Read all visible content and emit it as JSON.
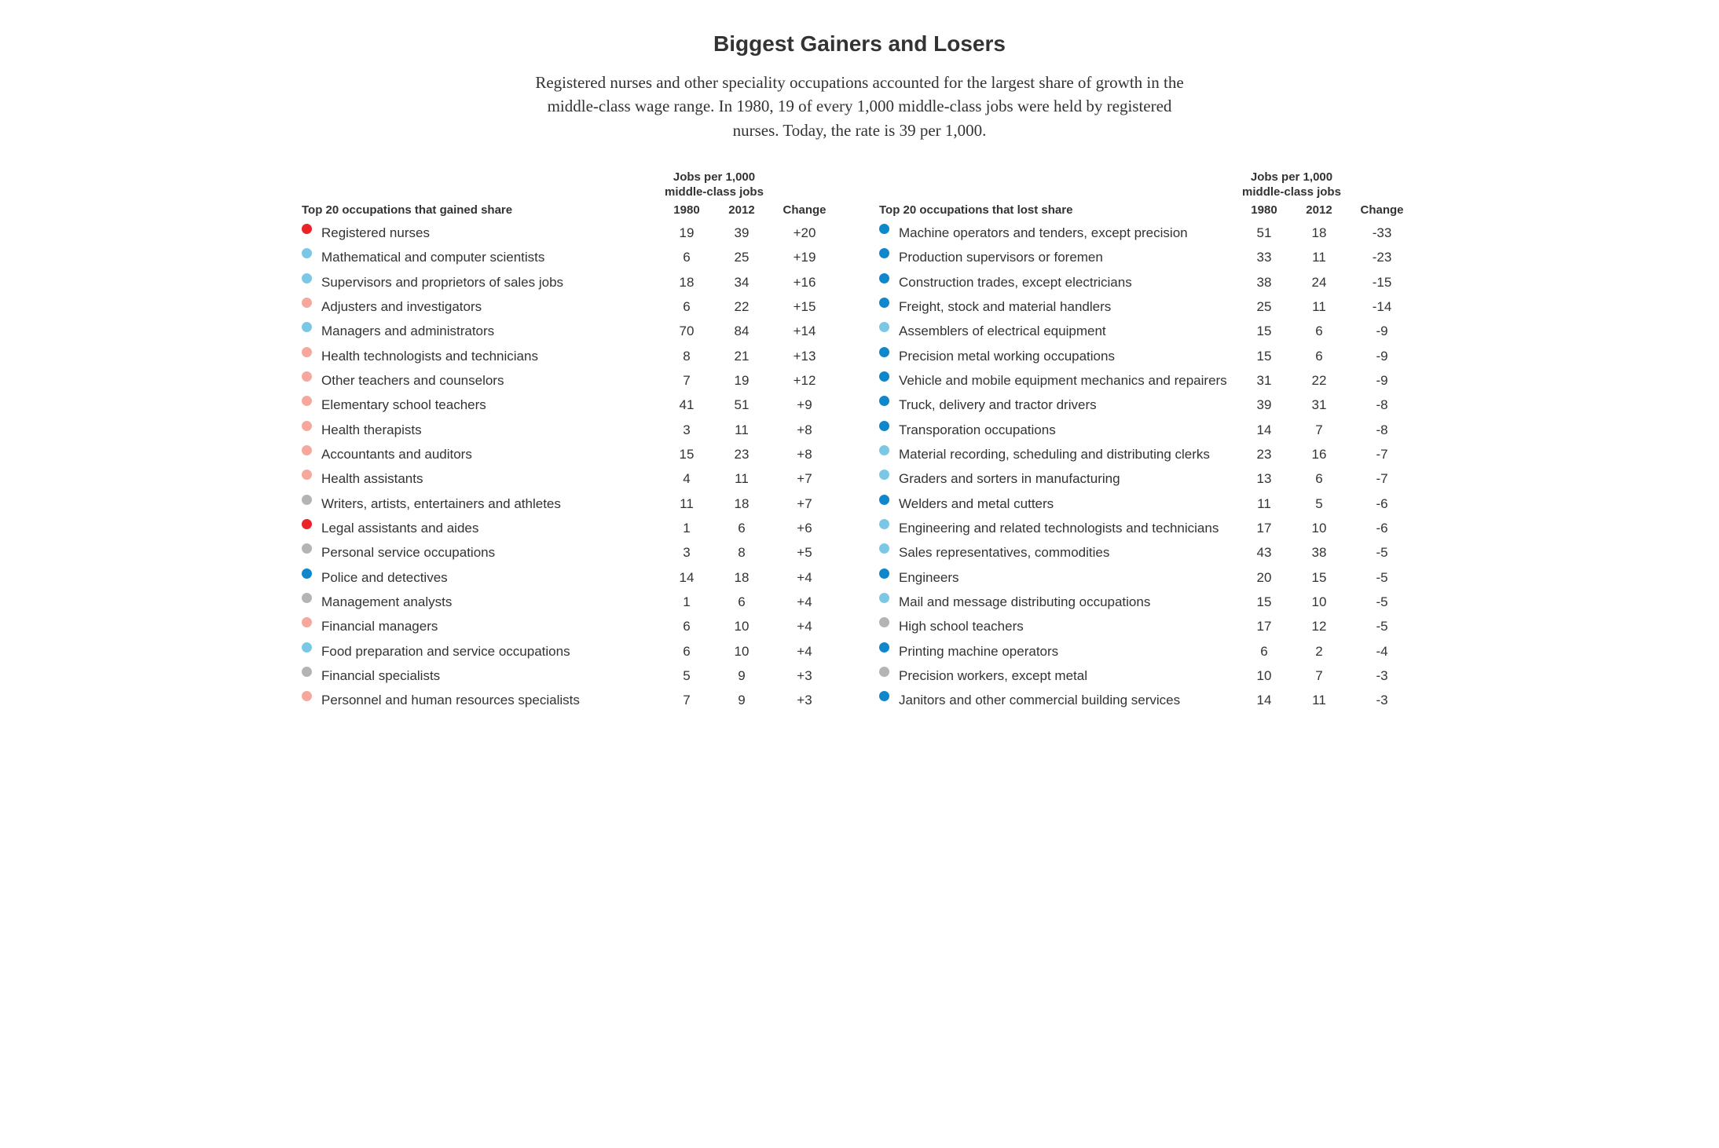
{
  "title": "Biggest Gainers and Losers",
  "subtitle": "Registered nurses and other speciality occupations accounted for the largest share of growth in the middle-class wage range. In 1980, 19 of every 1,000 middle-class jobs were held by registered nurses. Today, the rate is 39 per 1,000.",
  "colors": {
    "red": "#eb2227",
    "lightblue": "#7bc8e4",
    "pink": "#f5a89b",
    "grey": "#b4b4b4",
    "blue": "#0f87cc"
  },
  "headers": {
    "super": "Jobs per 1,000 middle-class jobs",
    "y1980": "1980",
    "y2012": "2012",
    "change": "Change"
  },
  "gainers": {
    "caption": "Top 20 occupations that gained share",
    "rows": [
      {
        "color": "red",
        "label": "Registered nurses",
        "y1980": "19",
        "y2012": "39",
        "change": "+20"
      },
      {
        "color": "lightblue",
        "label": "Mathematical and computer scientists",
        "y1980": "6",
        "y2012": "25",
        "change": "+19"
      },
      {
        "color": "lightblue",
        "label": "Supervisors and proprietors of sales jobs",
        "y1980": "18",
        "y2012": "34",
        "change": "+16"
      },
      {
        "color": "pink",
        "label": "Adjusters and investigators",
        "y1980": "6",
        "y2012": "22",
        "change": "+15"
      },
      {
        "color": "lightblue",
        "label": "Managers and administrators",
        "y1980": "70",
        "y2012": "84",
        "change": "+14"
      },
      {
        "color": "pink",
        "label": "Health technologists and technicians",
        "y1980": "8",
        "y2012": "21",
        "change": "+13"
      },
      {
        "color": "pink",
        "label": "Other teachers and counselors",
        "y1980": "7",
        "y2012": "19",
        "change": "+12"
      },
      {
        "color": "pink",
        "label": "Elementary school teachers",
        "y1980": "41",
        "y2012": "51",
        "change": "+9"
      },
      {
        "color": "pink",
        "label": "Health therapists",
        "y1980": "3",
        "y2012": "11",
        "change": "+8"
      },
      {
        "color": "pink",
        "label": "Accountants and auditors",
        "y1980": "15",
        "y2012": "23",
        "change": "+8"
      },
      {
        "color": "pink",
        "label": "Health assistants",
        "y1980": "4",
        "y2012": "11",
        "change": "+7"
      },
      {
        "color": "grey",
        "label": "Writers, artists, entertainers and athletes",
        "y1980": "11",
        "y2012": "18",
        "change": "+7"
      },
      {
        "color": "red",
        "label": "Legal assistants and aides",
        "y1980": "1",
        "y2012": "6",
        "change": "+6"
      },
      {
        "color": "grey",
        "label": "Personal service occupations",
        "y1980": "3",
        "y2012": "8",
        "change": "+5"
      },
      {
        "color": "blue",
        "label": "Police and detectives",
        "y1980": "14",
        "y2012": "18",
        "change": "+4"
      },
      {
        "color": "grey",
        "label": "Management analysts",
        "y1980": "1",
        "y2012": "6",
        "change": "+4"
      },
      {
        "color": "pink",
        "label": "Financial managers",
        "y1980": "6",
        "y2012": "10",
        "change": "+4"
      },
      {
        "color": "lightblue",
        "label": "Food preparation and service occupations",
        "y1980": "6",
        "y2012": "10",
        "change": "+4"
      },
      {
        "color": "grey",
        "label": "Financial specialists",
        "y1980": "5",
        "y2012": "9",
        "change": "+3"
      },
      {
        "color": "pink",
        "label": "Personnel and human resources specialists",
        "y1980": "7",
        "y2012": "9",
        "change": "+3"
      }
    ]
  },
  "losers": {
    "caption": "Top 20 occupations that lost share",
    "rows": [
      {
        "color": "blue",
        "label": "Machine operators and tenders, except precision",
        "y1980": "51",
        "y2012": "18",
        "change": "-33"
      },
      {
        "color": "blue",
        "label": "Production supervisors or foremen",
        "y1980": "33",
        "y2012": "11",
        "change": "-23"
      },
      {
        "color": "blue",
        "label": "Construction trades, except electricians",
        "y1980": "38",
        "y2012": "24",
        "change": "-15"
      },
      {
        "color": "blue",
        "label": "Freight, stock and material handlers",
        "y1980": "25",
        "y2012": "11",
        "change": "-14"
      },
      {
        "color": "lightblue",
        "label": "Assemblers of electrical equipment",
        "y1980": "15",
        "y2012": "6",
        "change": "-9"
      },
      {
        "color": "blue",
        "label": "Precision metal working occupations",
        "y1980": "15",
        "y2012": "6",
        "change": "-9"
      },
      {
        "color": "blue",
        "label": "Vehicle and mobile equipment mechanics and repairers",
        "y1980": "31",
        "y2012": "22",
        "change": "-9"
      },
      {
        "color": "blue",
        "label": "Truck, delivery and tractor drivers",
        "y1980": "39",
        "y2012": "31",
        "change": "-8"
      },
      {
        "color": "blue",
        "label": "Transporation occupations",
        "y1980": "14",
        "y2012": "7",
        "change": "-8"
      },
      {
        "color": "lightblue",
        "label": "Material recording, scheduling and distributing clerks",
        "y1980": "23",
        "y2012": "16",
        "change": "-7"
      },
      {
        "color": "lightblue",
        "label": "Graders and sorters in manufacturing",
        "y1980": "13",
        "y2012": "6",
        "change": "-7"
      },
      {
        "color": "blue",
        "label": "Welders and metal cutters",
        "y1980": "11",
        "y2012": "5",
        "change": "-6"
      },
      {
        "color": "lightblue",
        "label": "Engineering and related technologists and technicians",
        "y1980": "17",
        "y2012": "10",
        "change": "-6"
      },
      {
        "color": "lightblue",
        "label": "Sales representatives, commodities",
        "y1980": "43",
        "y2012": "38",
        "change": "-5"
      },
      {
        "color": "blue",
        "label": "Engineers",
        "y1980": "20",
        "y2012": "15",
        "change": "-5"
      },
      {
        "color": "lightblue",
        "label": "Mail and message distributing occupations",
        "y1980": "15",
        "y2012": "10",
        "change": "-5"
      },
      {
        "color": "grey",
        "label": "High school teachers",
        "y1980": "17",
        "y2012": "12",
        "change": "-5"
      },
      {
        "color": "blue",
        "label": "Printing machine operators",
        "y1980": "6",
        "y2012": "2",
        "change": "-4"
      },
      {
        "color": "grey",
        "label": "Precision workers, except metal",
        "y1980": "10",
        "y2012": "7",
        "change": "-3"
      },
      {
        "color": "blue",
        "label": "Janitors and other commercial building services",
        "y1980": "14",
        "y2012": "11",
        "change": "-3"
      }
    ]
  }
}
